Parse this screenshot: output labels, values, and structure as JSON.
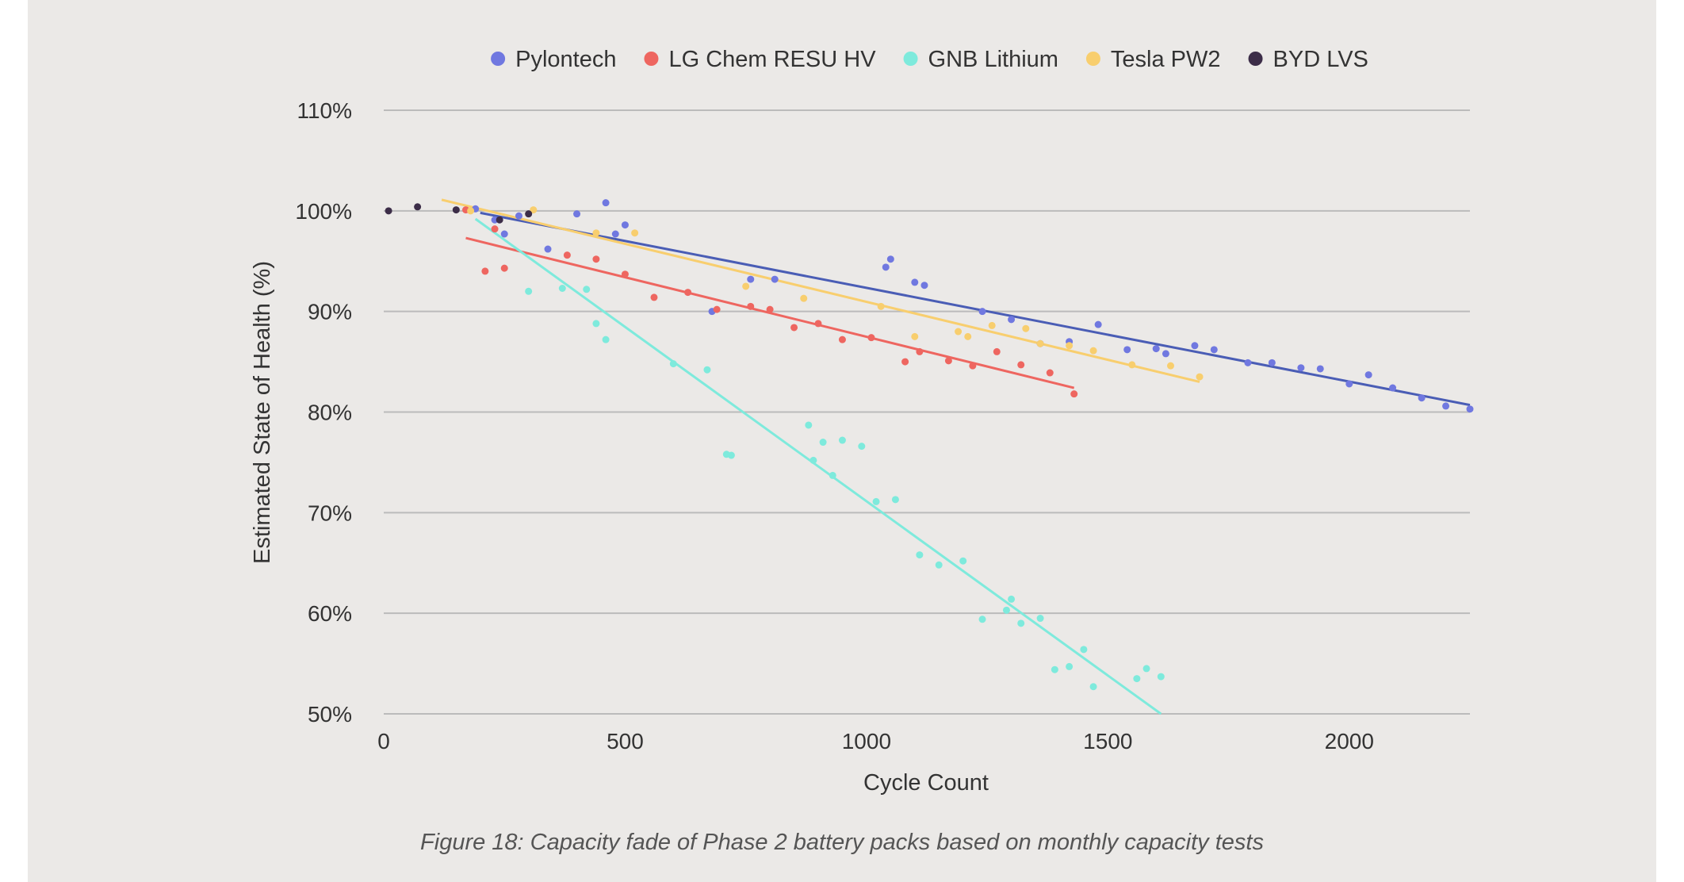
{
  "chart_data": {
    "type": "scatter",
    "caption": "Figure 18: Capacity fade of Phase 2 battery packs based on monthly capacity tests",
    "xlabel": "Cycle Count",
    "ylabel": "Estimated State of Health (%)",
    "xlim": [
      0,
      2250
    ],
    "ylim": [
      50,
      110
    ],
    "xticks": [
      0,
      500,
      1000,
      1500,
      2000
    ],
    "yticks": [
      50,
      60,
      70,
      80,
      90,
      100,
      110
    ],
    "ytick_suffix": "%",
    "grid": "horizontal",
    "legend_position": "top",
    "colors": {
      "background": "#ebe9e7",
      "grid": "#bbbbbb"
    },
    "series": [
      {
        "name": "Pylontech",
        "color": "#7078e0",
        "trend_color": "#4a5db5",
        "trendline": [
          [
            200,
            99.8
          ],
          [
            2250,
            80.7
          ]
        ],
        "points": [
          [
            190,
            100.2
          ],
          [
            230,
            99.1
          ],
          [
            250,
            97.7
          ],
          [
            280,
            99.5
          ],
          [
            340,
            96.2
          ],
          [
            400,
            99.7
          ],
          [
            460,
            100.8
          ],
          [
            480,
            97.7
          ],
          [
            500,
            98.6
          ],
          [
            680,
            90.0
          ],
          [
            760,
            93.2
          ],
          [
            810,
            93.2
          ],
          [
            1040,
            94.4
          ],
          [
            1050,
            95.2
          ],
          [
            1100,
            92.9
          ],
          [
            1120,
            92.6
          ],
          [
            1240,
            90.0
          ],
          [
            1300,
            89.2
          ],
          [
            1360,
            86.8
          ],
          [
            1420,
            87.0
          ],
          [
            1480,
            88.7
          ],
          [
            1540,
            86.2
          ],
          [
            1600,
            86.3
          ],
          [
            1620,
            85.8
          ],
          [
            1680,
            86.6
          ],
          [
            1720,
            86.2
          ],
          [
            1790,
            84.9
          ],
          [
            1840,
            84.9
          ],
          [
            1900,
            84.4
          ],
          [
            1940,
            84.3
          ],
          [
            2000,
            82.8
          ],
          [
            2040,
            83.7
          ],
          [
            2090,
            82.4
          ],
          [
            2150,
            81.4
          ],
          [
            2200,
            80.6
          ],
          [
            2250,
            80.3
          ]
        ]
      },
      {
        "name": "LG Chem RESU HV",
        "color": "#ee6660",
        "trend_color": "#ee6660",
        "trendline": [
          [
            170,
            97.3
          ],
          [
            1430,
            82.4
          ]
        ],
        "points": [
          [
            170,
            100.1
          ],
          [
            210,
            94.0
          ],
          [
            230,
            98.2
          ],
          [
            250,
            94.3
          ],
          [
            380,
            95.6
          ],
          [
            440,
            95.2
          ],
          [
            500,
            93.7
          ],
          [
            560,
            91.4
          ],
          [
            630,
            91.9
          ],
          [
            690,
            90.2
          ],
          [
            760,
            90.5
          ],
          [
            800,
            90.2
          ],
          [
            850,
            88.4
          ],
          [
            900,
            88.8
          ],
          [
            950,
            87.2
          ],
          [
            1010,
            87.4
          ],
          [
            1080,
            85.0
          ],
          [
            1110,
            86.0
          ],
          [
            1170,
            85.1
          ],
          [
            1220,
            84.6
          ],
          [
            1270,
            86.0
          ],
          [
            1320,
            84.7
          ],
          [
            1380,
            83.9
          ],
          [
            1430,
            81.8
          ]
        ]
      },
      {
        "name": "GNB Lithium",
        "color": "#7eeadc",
        "trend_color": "#7eeadc",
        "trendline": [
          [
            190,
            99.2
          ],
          [
            1610,
            50.0
          ]
        ],
        "points": [
          [
            300,
            92.0
          ],
          [
            370,
            92.3
          ],
          [
            420,
            92.2
          ],
          [
            440,
            88.8
          ],
          [
            460,
            87.2
          ],
          [
            600,
            84.8
          ],
          [
            670,
            84.2
          ],
          [
            710,
            75.8
          ],
          [
            720,
            75.7
          ],
          [
            880,
            78.7
          ],
          [
            890,
            75.2
          ],
          [
            910,
            77.0
          ],
          [
            930,
            73.7
          ],
          [
            950,
            77.2
          ],
          [
            990,
            76.6
          ],
          [
            1020,
            71.1
          ],
          [
            1060,
            71.3
          ],
          [
            1110,
            65.8
          ],
          [
            1150,
            64.8
          ],
          [
            1200,
            65.2
          ],
          [
            1240,
            59.4
          ],
          [
            1290,
            60.3
          ],
          [
            1300,
            61.4
          ],
          [
            1320,
            59.0
          ],
          [
            1360,
            59.5
          ],
          [
            1390,
            54.4
          ],
          [
            1420,
            54.7
          ],
          [
            1450,
            56.4
          ],
          [
            1470,
            52.7
          ],
          [
            1560,
            53.5
          ],
          [
            1580,
            54.5
          ],
          [
            1610,
            53.7
          ]
        ]
      },
      {
        "name": "Tesla PW2",
        "color": "#f8ce6e",
        "trend_color": "#f8ce6e",
        "trendline": [
          [
            120,
            101.1
          ],
          [
            1690,
            83.0
          ]
        ],
        "points": [
          [
            180,
            100.0
          ],
          [
            310,
            100.1
          ],
          [
            440,
            97.8
          ],
          [
            520,
            97.8
          ],
          [
            750,
            92.5
          ],
          [
            870,
            91.3
          ],
          [
            1030,
            90.5
          ],
          [
            1100,
            87.5
          ],
          [
            1190,
            88.0
          ],
          [
            1210,
            87.5
          ],
          [
            1260,
            88.6
          ],
          [
            1330,
            88.3
          ],
          [
            1360,
            86.8
          ],
          [
            1420,
            86.6
          ],
          [
            1470,
            86.1
          ],
          [
            1550,
            84.7
          ],
          [
            1630,
            84.6
          ],
          [
            1690,
            83.5
          ]
        ]
      },
      {
        "name": "BYD LVS",
        "color": "#3c2d48",
        "trend_color": "#3c2d48",
        "trendline": null,
        "points": [
          [
            10,
            100.0
          ],
          [
            70,
            100.4
          ],
          [
            150,
            100.1
          ],
          [
            240,
            99.1
          ],
          [
            300,
            99.7
          ]
        ]
      }
    ]
  }
}
